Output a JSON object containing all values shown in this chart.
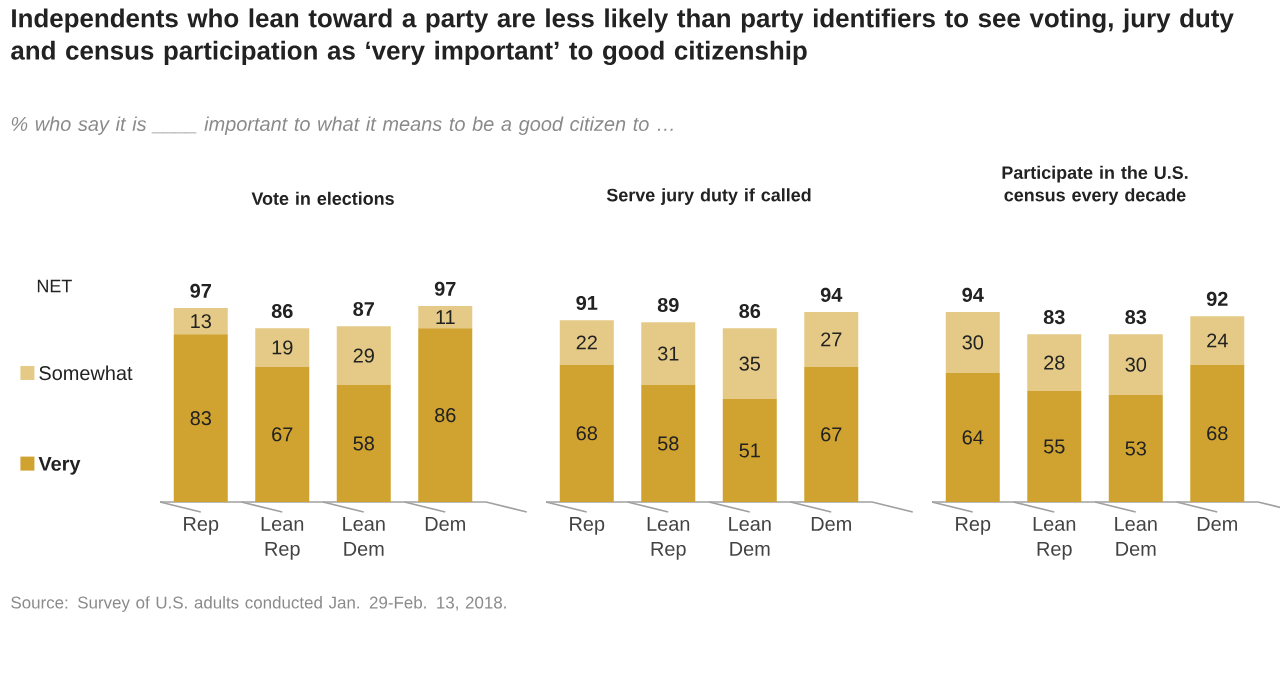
{
  "chart_data": [
    {
      "type": "bar",
      "stacked": true,
      "title": "Vote in elections",
      "categories": [
        "Rep",
        "Lean Rep",
        "Lean Dem",
        "Dem"
      ],
      "series": [
        {
          "name": "Very",
          "color": "#d0a330",
          "values": [
            83,
            67,
            58,
            86
          ]
        },
        {
          "name": "Somewhat",
          "color": "#e4ca86",
          "values": [
            13,
            19,
            29,
            11
          ]
        }
      ],
      "data_labels": true,
      "totals": [
        "97",
        "86",
        "87",
        "97"
      ],
      "tick_labels": "x",
      "legend": "left",
      "annotations": [
        "Independents  who lean toward a party are less likely than party identifiers to see voting, jury duty and census participation as ‘very important’ to good citizenship",
        "% who say it is ____ important to what it means to be a good citizen to …",
        "NET",
        "Source: Survey of U.S. adults conducted Jan. 29-Feb. 13, 2018."
      ]
    },
    {
      "type": "bar",
      "stacked": true,
      "title": "Serve jury duty if called",
      "categories": [
        "Rep",
        "Lean Rep",
        "Lean Dem",
        "Dem"
      ],
      "series": [
        {
          "color": "#d0a330",
          "values": [
            68,
            58,
            51,
            67
          ]
        },
        {
          "color": "#e4ca86",
          "values": [
            22,
            31,
            35,
            27
          ]
        }
      ],
      "data_labels": true,
      "totals": [
        "91",
        "89",
        "86",
        "94"
      ],
      "tick_labels": "x"
    },
    {
      "type": "bar",
      "stacked": true,
      "title": "Participate in the U.S. census every decade",
      "categories": [
        "Rep",
        "Lean Rep",
        "Lean Dem",
        "Dem"
      ],
      "series": [
        {
          "color": "#d0a330",
          "values": [
            64,
            55,
            53,
            68
          ]
        },
        {
          "color": "#e4ca86",
          "values": [
            30,
            28,
            30,
            24
          ]
        }
      ],
      "data_labels": true,
      "totals": [
        "94",
        "83",
        "83",
        "92"
      ],
      "tick_labels": "x"
    }
  ]
}
